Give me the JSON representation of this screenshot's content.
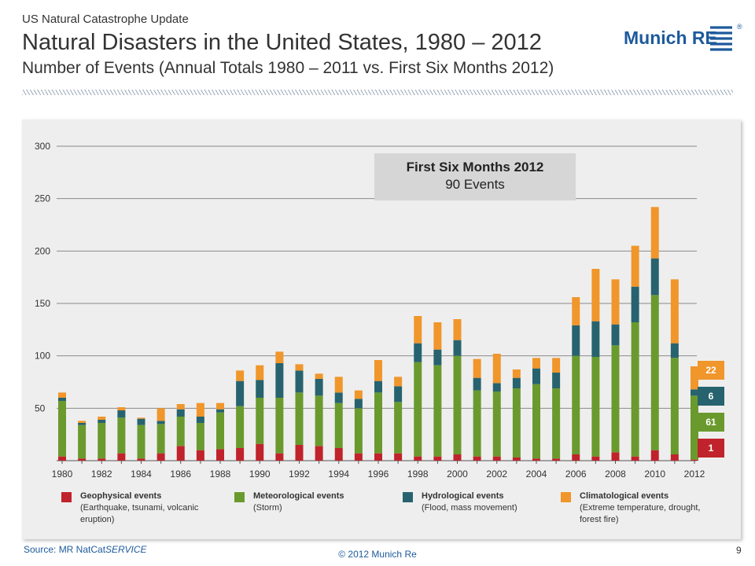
{
  "header": {
    "kicker": "US Natural Catastrophe Update",
    "title": "Natural Disasters in the United States, 1980 – 2012",
    "subtitle": "Number of Events (Annual Totals 1980 – 2011 vs. First Six Months 2012)"
  },
  "logo": {
    "text": "Munich RE",
    "registered": "®"
  },
  "callout": {
    "line1": "First Six Months 2012",
    "line2": "90 Events"
  },
  "badges": [
    {
      "label": "22",
      "series": "Climatological events"
    },
    {
      "label": "6",
      "series": "Hydrological events"
    },
    {
      "label": "61",
      "series": "Meteorological events"
    },
    {
      "label": "1",
      "series": "Geophysical events"
    }
  ],
  "legend": [
    {
      "name": "Geophysical events",
      "desc": "(Earthquake, tsunami, volcanic eruption)",
      "color": "#c0232b"
    },
    {
      "name": "Meteorological events",
      "desc": "(Storm)",
      "color": "#6a9a2e"
    },
    {
      "name": "Hydrological events",
      "desc": "(Flood, mass movement)",
      "color": "#27636e"
    },
    {
      "name": "Climatological events",
      "desc": "(Extreme temperature, drought, forest fire)",
      "color": "#f0962b"
    }
  ],
  "footer": {
    "source_prefix": "Source: MR NatCat",
    "source_italic": "SERVICE",
    "copyright": "© 2012 Munich Re",
    "page": "9"
  },
  "chart_data": {
    "type": "bar",
    "stacked": true,
    "categories": [
      "1980",
      "1981",
      "1982",
      "1983",
      "1984",
      "1985",
      "1986",
      "1987",
      "1988",
      "1989",
      "1990",
      "1991",
      "1992",
      "1993",
      "1994",
      "1995",
      "1996",
      "1997",
      "1998",
      "1999",
      "2000",
      "2001",
      "2002",
      "2003",
      "2004",
      "2005",
      "2006",
      "2007",
      "2008",
      "2009",
      "2010",
      "2011",
      "2012"
    ],
    "x_tick_labels": [
      "1980",
      "1982",
      "1984",
      "1986",
      "1988",
      "1990",
      "1992",
      "1994",
      "1996",
      "1998",
      "2000",
      "2002",
      "2004",
      "2006",
      "2008",
      "2010",
      "2012"
    ],
    "ylim": [
      0,
      300
    ],
    "y_ticks": [
      50,
      100,
      150,
      200,
      250,
      300
    ],
    "grid": true,
    "series": [
      {
        "name": "Geophysical events",
        "color": "#c0232b",
        "values": [
          4,
          2,
          2,
          7,
          2,
          7,
          14,
          10,
          11,
          12,
          16,
          7,
          15,
          14,
          12,
          7,
          7,
          7,
          4,
          4,
          6,
          4,
          4,
          3,
          2,
          2,
          6,
          4,
          8,
          4,
          10,
          6,
          1
        ]
      },
      {
        "name": "Meteorological events",
        "color": "#6a9a2e",
        "values": [
          53,
          32,
          34,
          34,
          32,
          28,
          28,
          26,
          35,
          40,
          44,
          53,
          50,
          48,
          43,
          43,
          58,
          49,
          90,
          87,
          94,
          63,
          62,
          66,
          71,
          67,
          94,
          95,
          102,
          128,
          148,
          92,
          61
        ]
      },
      {
        "name": "Hydrological events",
        "color": "#27636e",
        "values": [
          3,
          2,
          3,
          7,
          6,
          3,
          7,
          6,
          3,
          24,
          17,
          33,
          21,
          16,
          10,
          9,
          11,
          15,
          18,
          15,
          15,
          12,
          8,
          10,
          15,
          15,
          29,
          34,
          20,
          34,
          35,
          14,
          6
        ]
      },
      {
        "name": "Climatological events",
        "color": "#f0962b",
        "values": [
          5,
          2,
          3,
          3,
          1,
          12,
          5,
          13,
          6,
          10,
          14,
          11,
          6,
          5,
          15,
          8,
          20,
          9,
          26,
          26,
          20,
          18,
          28,
          8,
          10,
          14,
          27,
          50,
          43,
          39,
          49,
          61,
          22
        ]
      }
    ]
  }
}
